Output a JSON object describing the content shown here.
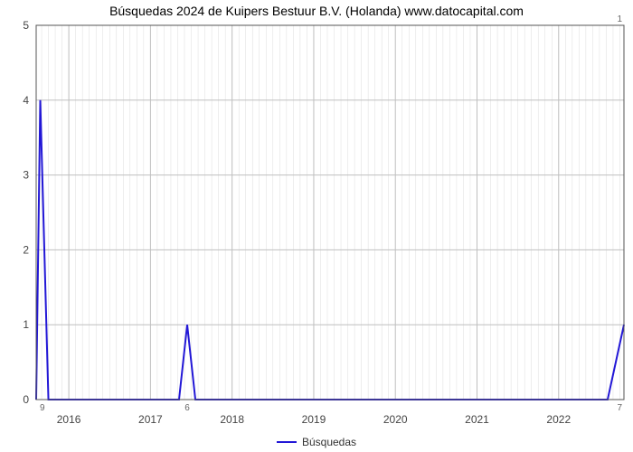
{
  "title": "Búsquedas 2024 de Kuipers Bestuur B.V. (Holanda) www.datocapital.com",
  "chart": {
    "type": "line",
    "background_color": "#ffffff",
    "plot_border_color": "#555555",
    "major_grid_color": "#bfbfbf",
    "minor_grid_color": "#dddddd",
    "line_color": "#2217d6",
    "line_width": 2,
    "x_minor_per_major": 12,
    "y_minor_per_major": 1,
    "xlim": [
      2015.6,
      2022.8
    ],
    "ylim": [
      0,
      5
    ],
    "x_ticks": [
      2016,
      2017,
      2018,
      2019,
      2020,
      2021,
      2022
    ],
    "y_ticks": [
      0,
      1,
      2,
      3,
      4,
      5
    ],
    "x_tick_labels": [
      "2016",
      "2017",
      "2018",
      "2019",
      "2020",
      "2021",
      "2022"
    ],
    "y_tick_labels": [
      "0",
      "1",
      "2",
      "3",
      "4",
      "5"
    ],
    "topright_label": "1",
    "start_label": "9",
    "midspike_label": "6",
    "end_label": "7",
    "points": [
      [
        2015.6,
        0.0
      ],
      [
        2015.65,
        4.0
      ],
      [
        2015.75,
        0.0
      ],
      [
        2017.35,
        0.0
      ],
      [
        2017.45,
        1.0
      ],
      [
        2017.55,
        0.0
      ],
      [
        2022.6,
        0.0
      ],
      [
        2022.8,
        1.0
      ]
    ],
    "legend_label": "Búsquedas",
    "title_fontsize": 14,
    "tick_fontsize": 12
  }
}
